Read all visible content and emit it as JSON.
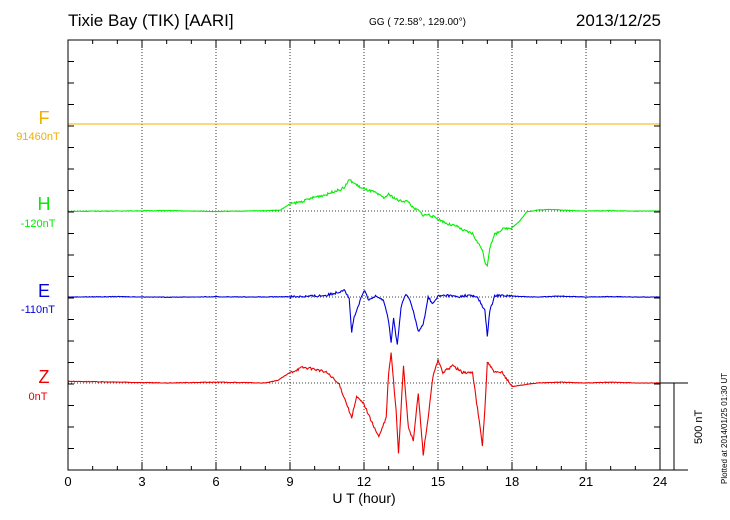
{
  "header": {
    "station": "Tixie Bay (TIK)  [AARI]",
    "coordinates": "GG ( 72.58°, 129.00°)",
    "date": "2013/12/25"
  },
  "plotted_note": "Plotted at 2014/01/25 01:30 UT",
  "scale_bar_label": "500 nT",
  "chart_data": {
    "type": "line",
    "title": "Tixie Bay (TIK)  [AARI]",
    "xlabel": "U T (hour)",
    "xlim": [
      0,
      24
    ],
    "xticks": [
      "0",
      "3",
      "6",
      "9",
      "12",
      "15",
      "18",
      "21",
      "24"
    ],
    "grid": true,
    "scale_bar_nT": 500,
    "channels": [
      {
        "name": "F",
        "baseline_label": "91460nT",
        "color": "#f0b000",
        "x": [
          0,
          24
        ],
        "y": [
          0,
          0
        ]
      },
      {
        "name": "H",
        "baseline_label": "-120nT",
        "color": "#00ee00",
        "x": [
          0,
          2,
          4,
          6,
          8,
          8.6,
          9,
          9.5,
          10,
          10.5,
          10.8,
          11,
          11.2,
          11.4,
          11.6,
          11.8,
          12,
          12.4,
          12.8,
          13,
          13.4,
          13.8,
          14,
          14.2,
          14.4,
          14.6,
          15,
          15.4,
          15.8,
          16,
          16.4,
          16.6,
          16.8,
          16.9,
          17,
          17.1,
          17.3,
          17.6,
          18,
          18.3,
          18.6,
          19,
          19.6,
          20,
          21,
          22,
          23,
          24
        ],
        "y": [
          -2,
          0,
          2,
          -3,
          2,
          5,
          40,
          55,
          80,
          95,
          115,
          120,
          135,
          180,
          160,
          140,
          125,
          110,
          75,
          95,
          60,
          55,
          15,
          5,
          -25,
          -20,
          -45,
          -75,
          -90,
          -110,
          -130,
          -180,
          -220,
          -300,
          -310,
          -210,
          -135,
          -105,
          -95,
          -60,
          -5,
          5,
          10,
          5,
          0,
          2,
          -1,
          0
        ]
      },
      {
        "name": "E",
        "baseline_label": "-110nT",
        "color": "#0000dd",
        "x": [
          0,
          2,
          4,
          6,
          8,
          9,
          10,
          10.5,
          11,
          11.2,
          11.4,
          11.5,
          11.6,
          11.8,
          12,
          12.2,
          12.5,
          12.8,
          13,
          13.1,
          13.2,
          13.35,
          13.5,
          13.7,
          13.9,
          14,
          14.2,
          14.4,
          14.6,
          14.8,
          15,
          15.4,
          15.8,
          16.2,
          16.6,
          16.9,
          17,
          17.1,
          17.3,
          17.6,
          18,
          19,
          20,
          21,
          22,
          23,
          24
        ],
        "y": [
          0,
          2,
          -1,
          1,
          0,
          2,
          5,
          10,
          30,
          45,
          -10,
          -200,
          -120,
          -40,
          40,
          -20,
          10,
          -20,
          -140,
          -260,
          -120,
          -280,
          -60,
          20,
          -30,
          -80,
          -200,
          -160,
          0,
          -40,
          5,
          10,
          0,
          10,
          0,
          -80,
          -220,
          -80,
          5,
          10,
          5,
          0,
          5,
          0,
          2,
          0,
          0
        ]
      },
      {
        "name": "Z",
        "baseline_label": "0nT",
        "color": "#ee0000",
        "x": [
          0,
          2,
          4,
          6,
          8,
          8.5,
          9,
          9.5,
          10,
          10.5,
          11,
          11.3,
          11.5,
          11.7,
          12,
          12.3,
          12.6,
          12.9,
          13,
          13.1,
          13.3,
          13.4,
          13.6,
          13.8,
          14,
          14.2,
          14.4,
          14.6,
          14.8,
          15,
          15.2,
          15.6,
          16,
          16.4,
          16.7,
          16.8,
          16.9,
          17,
          17.1,
          17.3,
          17.6,
          18,
          19,
          20,
          21,
          22,
          23,
          24
        ],
        "y": [
          10,
          5,
          0,
          5,
          0,
          15,
          60,
          90,
          80,
          60,
          -10,
          -120,
          -200,
          -80,
          -120,
          -220,
          -310,
          -200,
          60,
          170,
          -160,
          -400,
          100,
          -260,
          -330,
          -60,
          -410,
          -200,
          40,
          130,
          60,
          100,
          60,
          60,
          -250,
          -360,
          -150,
          120,
          100,
          60,
          60,
          -20,
          0,
          5,
          0,
          5,
          0,
          0
        ]
      }
    ]
  }
}
